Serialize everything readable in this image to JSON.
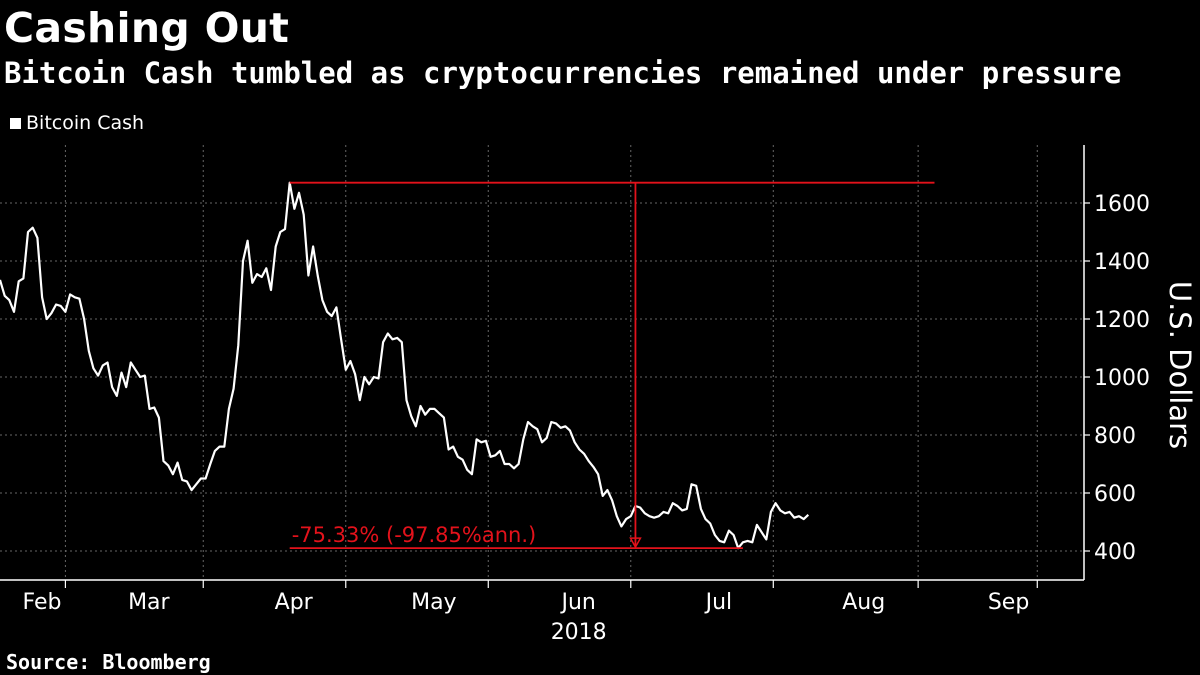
{
  "title": "Cashing Out",
  "subtitle": "Bitcoin Cash tumbled as cryptocurrencies remained under pressure",
  "source": "Source: Bloomberg",
  "colors": {
    "background": "#000000",
    "series": "#ffffff",
    "annotation": "#e3121b",
    "grid": "#666666"
  },
  "chart_data": {
    "type": "line",
    "x_unit": "day of year 2018",
    "ylabel": "U.S. Dollars",
    "ylim": [
      300,
      1800
    ],
    "yticks": [
      400,
      600,
      800,
      1000,
      1200,
      1400,
      1600
    ],
    "xlim": [
      32,
      264
    ],
    "xticks": [
      {
        "label": "Feb",
        "x": 32
      },
      {
        "label": "Mar",
        "x": 60
      },
      {
        "label": "Apr",
        "x": 91
      },
      {
        "label": "May",
        "x": 121
      },
      {
        "label": "Jun",
        "x": 152
      },
      {
        "label": "Jul",
        "x": 182
      },
      {
        "label": "Aug",
        "x": 213
      },
      {
        "label": "Sep",
        "x": 244
      }
    ],
    "xlabel_year": "2018",
    "grid": true,
    "legend": {
      "placement": "top-left",
      "entries": [
        "Bitcoin Cash"
      ]
    },
    "series": [
      {
        "name": "Bitcoin Cash",
        "points": [
          [
            32,
            1335
          ],
          [
            33,
            1280
          ],
          [
            34,
            1265
          ],
          [
            35,
            1225
          ],
          [
            36,
            1330
          ],
          [
            37,
            1340
          ],
          [
            38,
            1500
          ],
          [
            39,
            1515
          ],
          [
            40,
            1480
          ],
          [
            41,
            1275
          ],
          [
            42,
            1200
          ],
          [
            43,
            1220
          ],
          [
            44,
            1250
          ],
          [
            45,
            1245
          ],
          [
            46,
            1225
          ],
          [
            47,
            1285
          ],
          [
            48,
            1275
          ],
          [
            49,
            1270
          ],
          [
            50,
            1200
          ],
          [
            51,
            1090
          ],
          [
            52,
            1030
          ],
          [
            53,
            1005
          ],
          [
            54,
            1040
          ],
          [
            55,
            1050
          ],
          [
            56,
            965
          ],
          [
            57,
            935
          ],
          [
            58,
            1015
          ],
          [
            59,
            965
          ],
          [
            60,
            1050
          ],
          [
            61,
            1025
          ],
          [
            62,
            1000
          ],
          [
            63,
            1005
          ],
          [
            64,
            890
          ],
          [
            65,
            895
          ],
          [
            66,
            860
          ],
          [
            67,
            710
          ],
          [
            68,
            695
          ],
          [
            69,
            665
          ],
          [
            70,
            705
          ],
          [
            71,
            645
          ],
          [
            72,
            640
          ],
          [
            73,
            610
          ],
          [
            74,
            630
          ],
          [
            75,
            650
          ],
          [
            76,
            650
          ],
          [
            77,
            700
          ],
          [
            78,
            745
          ],
          [
            79,
            760
          ],
          [
            80,
            760
          ],
          [
            81,
            890
          ],
          [
            82,
            960
          ],
          [
            83,
            1110
          ],
          [
            84,
            1400
          ],
          [
            85,
            1470
          ],
          [
            86,
            1325
          ],
          [
            87,
            1355
          ],
          [
            88,
            1345
          ],
          [
            89,
            1375
          ],
          [
            90,
            1300
          ],
          [
            91,
            1450
          ],
          [
            92,
            1500
          ],
          [
            93,
            1510
          ],
          [
            94,
            1670
          ],
          [
            95,
            1580
          ],
          [
            96,
            1635
          ],
          [
            97,
            1560
          ],
          [
            98,
            1350
          ],
          [
            99,
            1450
          ],
          [
            100,
            1350
          ],
          [
            101,
            1265
          ],
          [
            102,
            1225
          ],
          [
            103,
            1210
          ],
          [
            104,
            1240
          ],
          [
            105,
            1130
          ],
          [
            106,
            1025
          ],
          [
            107,
            1055
          ],
          [
            108,
            1010
          ],
          [
            109,
            920
          ],
          [
            110,
            1000
          ],
          [
            111,
            975
          ],
          [
            112,
            1000
          ],
          [
            113,
            995
          ],
          [
            114,
            1120
          ],
          [
            115,
            1150
          ],
          [
            116,
            1130
          ],
          [
            117,
            1135
          ],
          [
            118,
            1120
          ],
          [
            119,
            920
          ],
          [
            120,
            865
          ],
          [
            121,
            830
          ],
          [
            122,
            900
          ],
          [
            123,
            870
          ],
          [
            124,
            890
          ],
          [
            125,
            890
          ],
          [
            126,
            875
          ],
          [
            127,
            860
          ],
          [
            128,
            750
          ],
          [
            129,
            760
          ],
          [
            130,
            725
          ],
          [
            131,
            715
          ],
          [
            132,
            680
          ],
          [
            133,
            665
          ],
          [
            134,
            785
          ],
          [
            135,
            775
          ],
          [
            136,
            780
          ],
          [
            137,
            725
          ],
          [
            138,
            730
          ],
          [
            139,
            745
          ],
          [
            140,
            700
          ],
          [
            141,
            700
          ],
          [
            142,
            685
          ],
          [
            143,
            700
          ],
          [
            144,
            785
          ],
          [
            145,
            845
          ],
          [
            146,
            830
          ],
          [
            147,
            820
          ],
          [
            148,
            775
          ],
          [
            149,
            790
          ],
          [
            150,
            845
          ],
          [
            151,
            840
          ],
          [
            152,
            825
          ],
          [
            153,
            830
          ],
          [
            154,
            815
          ],
          [
            155,
            775
          ],
          [
            156,
            750
          ],
          [
            157,
            735
          ],
          [
            158,
            710
          ],
          [
            159,
            690
          ],
          [
            160,
            665
          ],
          [
            161,
            590
          ],
          [
            162,
            610
          ],
          [
            163,
            575
          ],
          [
            164,
            520
          ],
          [
            165,
            485
          ],
          [
            166,
            510
          ],
          [
            167,
            520
          ],
          [
            168,
            555
          ],
          [
            169,
            550
          ],
          [
            170,
            530
          ],
          [
            171,
            520
          ],
          [
            172,
            515
          ],
          [
            173,
            520
          ],
          [
            174,
            535
          ],
          [
            175,
            530
          ],
          [
            176,
            565
          ],
          [
            177,
            555
          ],
          [
            178,
            540
          ],
          [
            179,
            545
          ],
          [
            180,
            630
          ],
          [
            181,
            625
          ],
          [
            182,
            545
          ],
          [
            183,
            510
          ],
          [
            184,
            495
          ],
          [
            185,
            455
          ],
          [
            186,
            435
          ],
          [
            187,
            430
          ],
          [
            188,
            470
          ],
          [
            189,
            455
          ],
          [
            190,
            410
          ],
          [
            191,
            430
          ],
          [
            192,
            435
          ],
          [
            193,
            430
          ],
          [
            194,
            490
          ],
          [
            195,
            465
          ],
          [
            196,
            440
          ],
          [
            197,
            535
          ],
          [
            198,
            565
          ],
          [
            199,
            540
          ],
          [
            200,
            530
          ],
          [
            201,
            535
          ],
          [
            202,
            515
          ],
          [
            203,
            520
          ],
          [
            204,
            510
          ],
          [
            205,
            525
          ]
        ]
      }
    ],
    "annotations": {
      "max_value": 1670,
      "min_value": 410,
      "change_label": "-75.33% (-97.85%ann.)"
    }
  }
}
